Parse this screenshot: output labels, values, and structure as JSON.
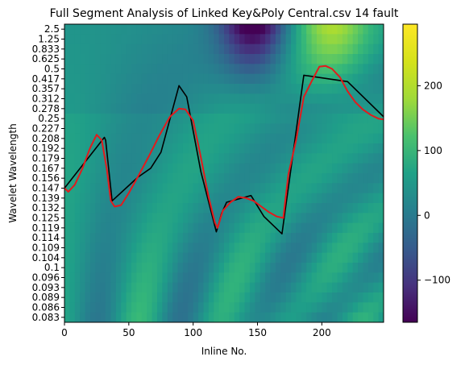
{
  "chart_data": {
    "type": "heatmap",
    "title": "Full Segment Analysis of Linked Key&Poly Central.csv 14 fault",
    "xlabel": "Inline No.",
    "ylabel": "Wavelet Wavelength",
    "xlim": [
      0,
      248
    ],
    "x_ticks": [
      0,
      50,
      100,
      150,
      200
    ],
    "y_tick_labels": [
      "2.5",
      "1.25",
      "0.833",
      "0.625",
      "0.5",
      "0.417",
      "0.357",
      "0.312",
      "0.278",
      "0.25",
      "0.227",
      "0.208",
      "0.192",
      "0.179",
      "0.167",
      "0.156",
      "0.147",
      "0.139",
      "0.132",
      "0.125",
      "0.119",
      "0.114",
      "0.109",
      "0.104",
      "0.1",
      "0.096",
      "0.093",
      "0.089",
      "0.086",
      "0.083"
    ],
    "colormap": "viridis",
    "colorbar": {
      "min": -165,
      "max": 295,
      "ticks": [
        -100,
        0,
        100,
        200
      ]
    },
    "series": [
      {
        "style": "black-line",
        "x": [
          0,
          31,
          32,
          37,
          57,
          67,
          75,
          89,
          95,
          106,
          118,
          119,
          122,
          126,
          145,
          155,
          169,
          186,
          220,
          248
        ],
        "y": [
          0.147,
          0.21,
          0.205,
          0.137,
          0.157,
          0.167,
          0.187,
          0.375,
          0.32,
          0.163,
          0.117,
          0.119,
          0.128,
          0.136,
          0.141,
          0.126,
          0.116,
          0.445,
          0.399,
          0.255
        ]
      },
      {
        "style": "red-curve",
        "x": [
          0,
          3,
          8,
          14,
          20,
          25,
          29,
          33,
          36,
          39,
          44,
          50,
          58,
          66,
          74,
          82,
          89,
          94,
          100,
          106,
          112,
          117,
          119,
          123,
          129,
          135,
          141,
          147,
          153,
          159,
          165,
          170,
          174,
          180,
          186,
          192,
          198,
          203,
          208,
          214,
          220,
          226,
          232,
          238,
          244,
          248
        ],
        "y": [
          0.147,
          0.144,
          0.15,
          0.167,
          0.193,
          0.215,
          0.205,
          0.165,
          0.137,
          0.133,
          0.134,
          0.143,
          0.16,
          0.183,
          0.215,
          0.255,
          0.278,
          0.276,
          0.245,
          0.18,
          0.14,
          0.122,
          0.119,
          0.13,
          0.136,
          0.14,
          0.139,
          0.137,
          0.133,
          0.129,
          0.126,
          0.125,
          0.16,
          0.205,
          0.32,
          0.4,
          0.525,
          0.535,
          0.5,
          0.43,
          0.345,
          0.3,
          0.275,
          0.26,
          0.25,
          0.248
        ]
      }
    ]
  }
}
